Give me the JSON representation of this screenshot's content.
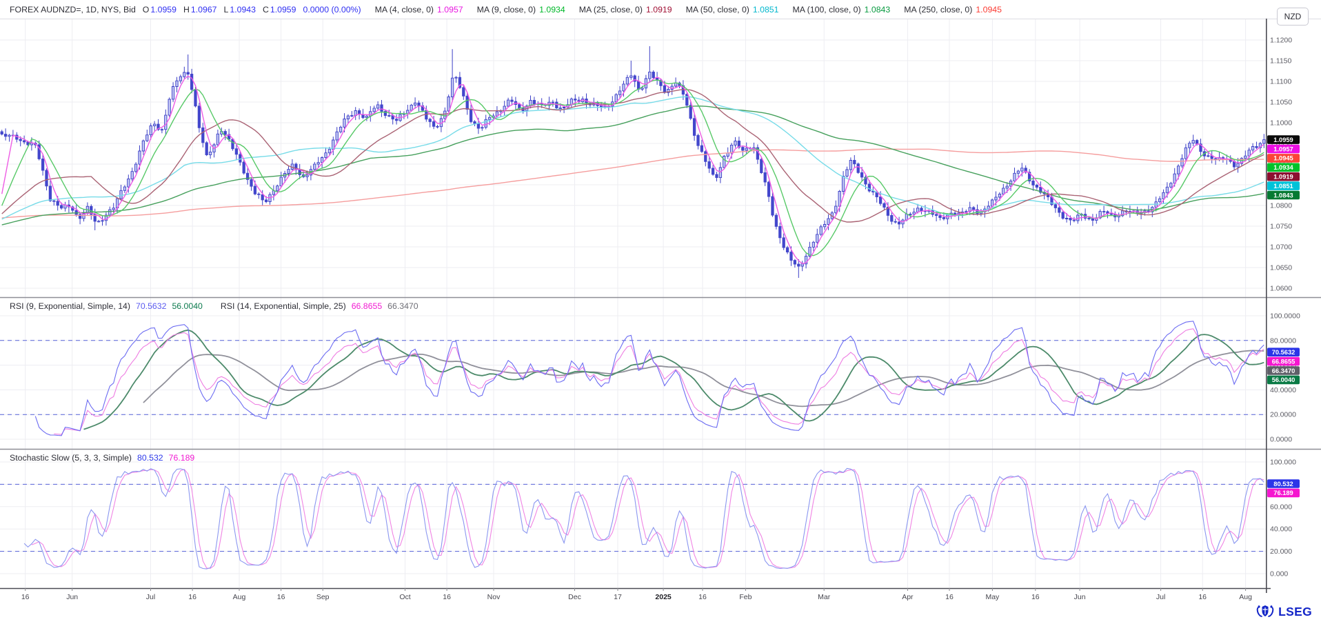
{
  "header": {
    "symbol": "FOREX AUDNZD=, 1D, NYS, Bid",
    "ohlc": [
      {
        "label": "O",
        "value": "1.0959"
      },
      {
        "label": "H",
        "value": "1.0967"
      },
      {
        "label": "L",
        "value": "1.0943"
      },
      {
        "label": "C",
        "value": "1.0959"
      },
      {
        "label": "",
        "value": "0.0000 (0.00%)"
      }
    ],
    "mas": [
      {
        "label": "MA (4, close, 0)",
        "value": "1.0957",
        "color": "#e816e0"
      },
      {
        "label": "MA (9, close, 0)",
        "value": "1.0934",
        "color": "#00b82a"
      },
      {
        "label": "MA (25, close, 0)",
        "value": "1.0919",
        "color": "#a11236"
      },
      {
        "label": "MA (50, close, 0)",
        "value": "1.0851",
        "color": "#00b7cd"
      },
      {
        "label": "MA (100, close, 0)",
        "value": "1.0843",
        "color": "#089a40"
      },
      {
        "label": "MA (250, close, 0)",
        "value": "1.0945",
        "color": "#fb3b33"
      }
    ]
  },
  "currency_button": {
    "label": "NZD"
  },
  "rsi_panel": {
    "title1": "RSI (9, Exponential, Simple, 14)",
    "value1": "70.5632",
    "value2": "56.0040",
    "title2": "RSI (14, Exponential, Simple, 25)",
    "value3": "66.8655",
    "value4": "66.3470",
    "value1_color": "#5b5bf0",
    "value2_color": "#0c7a4e",
    "value3_color": "#f21ad2",
    "value4_color": "#6e6e76"
  },
  "stoch_panel": {
    "title": "Stochastic Slow (5, 3, 3, Simple)",
    "value1": "80.532",
    "value2": "76.189",
    "value1_color": "#2f3bea",
    "value2_color": "#f21ad2"
  },
  "logo": {
    "text": "LSEG"
  },
  "colors": {
    "quote_value": "#2f2ff2",
    "candle_up_fill": "#c2c6f4",
    "candle_up_stroke": "#3c40c6",
    "candle_down": "#4347cc",
    "wick": "#3c40c6",
    "grid": "#ededf2",
    "guide": "#5560d8",
    "axis_line": "#4a4a52",
    "divider": "#8e8e96",
    "axis_text": "#5a5a62",
    "date_text": "#46464e",
    "header_text": "#2e2e36"
  },
  "axes": {
    "price_ticks": [
      "1.1200",
      "1.1150",
      "1.1100",
      "1.1050",
      "1.1000",
      "1.0950",
      "1.0900",
      "1.0850",
      "1.0800",
      "1.0750",
      "1.0700",
      "1.0650",
      "1.0600"
    ],
    "rsi_ticks": [
      "100.0000",
      "80.0000",
      "60.0000",
      "40.0000",
      "20.0000",
      "0.0000"
    ],
    "stoch_ticks": [
      "100.000",
      "80.000",
      "60.000",
      "40.000",
      "20.000",
      "0.000"
    ],
    "x_ticks": [
      {
        "f": 0.02,
        "label": "16"
      },
      {
        "f": 0.057,
        "label": "Jun"
      },
      {
        "f": 0.119,
        "label": "Jul"
      },
      {
        "f": 0.152,
        "label": "16"
      },
      {
        "f": 0.189,
        "label": "Aug"
      },
      {
        "f": 0.222,
        "label": "16"
      },
      {
        "f": 0.255,
        "label": "Sep"
      },
      {
        "f": 0.32,
        "label": "Oct"
      },
      {
        "f": 0.353,
        "label": "16"
      },
      {
        "f": 0.39,
        "label": "Nov"
      },
      {
        "f": 0.454,
        "label": "Dec"
      },
      {
        "f": 0.488,
        "label": "17"
      },
      {
        "f": 0.524,
        "label": "2025",
        "bold": true
      },
      {
        "f": 0.555,
        "label": "16"
      },
      {
        "f": 0.589,
        "label": "Feb"
      },
      {
        "f": 0.651,
        "label": "Mar"
      },
      {
        "f": 0.717,
        "label": "Apr"
      },
      {
        "f": 0.75,
        "label": "16"
      },
      {
        "f": 0.784,
        "label": "May"
      },
      {
        "f": 0.818,
        "label": "16"
      },
      {
        "f": 0.853,
        "label": "Jun"
      },
      {
        "f": 0.917,
        "label": "Jul"
      },
      {
        "f": 0.95,
        "label": "16"
      },
      {
        "f": 0.984,
        "label": "Aug"
      }
    ],
    "price_badges": [
      {
        "label": "1.0959",
        "v": 1.0959,
        "bg": "#0a0a0a",
        "fg": "#ffffff"
      },
      {
        "label": "1.0957",
        "v": 1.0957,
        "bg": "#ec0fe4",
        "fg": "#ffffff"
      },
      {
        "label": "1.0945",
        "v": 1.0945,
        "bg": "#fb4438",
        "fg": "#ffffff"
      },
      {
        "label": "1.0934",
        "v": 1.0934,
        "bg": "#00c22a",
        "fg": "#ffffff"
      },
      {
        "label": "1.0919",
        "v": 1.0919,
        "bg": "#8c1030",
        "fg": "#ffffff"
      },
      {
        "label": "1.0851",
        "v": 1.0851,
        "bg": "#00c2d8",
        "fg": "#ffffff"
      },
      {
        "label": "1.0843",
        "v": 1.0843,
        "bg": "#067a33",
        "fg": "#ffffff"
      }
    ],
    "rsi_badges": [
      {
        "label": "70.5632",
        "v": 70.5632,
        "bg": "#2b35e8",
        "fg": "#ffffff"
      },
      {
        "label": "66.8655",
        "v": 66.8655,
        "bg": "#f515cf",
        "fg": "#ffffff"
      },
      {
        "label": "66.3470",
        "v": 66.347,
        "bg": "#5f5f68",
        "fg": "#ffffff"
      },
      {
        "label": "56.0040",
        "v": 56.004,
        "bg": "#0a7a45",
        "fg": "#ffffff"
      }
    ],
    "stoch_badges": [
      {
        "label": "80.532",
        "v": 80.532,
        "bg": "#2b35e8",
        "fg": "#ffffff"
      },
      {
        "label": "76.189",
        "v": 76.189,
        "bg": "#f515cf",
        "fg": "#ffffff"
      }
    ]
  },
  "chart_data": [
    {
      "type": "candlestick",
      "symbol": "FOREX AUDNZD=",
      "interval": "1D",
      "venue": "NYS",
      "side": "Bid",
      "ohlc_current": {
        "open": 1.0959,
        "high": 1.0967,
        "low": 1.0943,
        "close": 1.0959,
        "change": "0.0000 (0.00%)"
      },
      "x_axis": {
        "start": "May 2024",
        "end": "Aug 2025"
      },
      "y_axis": {
        "min": 1.0578,
        "max": 1.1252,
        "tick_step": 0.005
      },
      "overlays": [
        {
          "name": "MA (4, close, 0)",
          "period": 4,
          "value": 1.0957,
          "line_color": "#ee5ce4",
          "line_width": 1.4
        },
        {
          "name": "MA (9, close, 0)",
          "period": 9,
          "value": 1.0934,
          "line_color": "#57c967",
          "line_width": 1.4
        },
        {
          "name": "MA (25, close, 0)",
          "period": 25,
          "value": 1.0919,
          "line_color": "#aa6374",
          "line_width": 1.4
        },
        {
          "name": "MA (50, close, 0)",
          "period": 50,
          "value": 1.0851,
          "line_color": "#76dbe8",
          "line_width": 1.4
        },
        {
          "name": "MA (100, close, 0)",
          "period": 100,
          "value": 1.0843,
          "line_color": "#46a05c",
          "line_width": 1.4
        },
        {
          "name": "MA (250, close, 0)",
          "period": 250,
          "value": 1.0945,
          "line_color": "#f59d9d",
          "line_width": 1.4
        }
      ],
      "bars": 340,
      "close_path": [
        [
          0.003,
          1.0965
        ],
        [
          0.011,
          1.097
        ],
        [
          0.019,
          1.095
        ],
        [
          0.027,
          1.094
        ],
        [
          0.033,
          1.088
        ],
        [
          0.038,
          1.082
        ],
        [
          0.046,
          1.079
        ],
        [
          0.055,
          1.08
        ],
        [
          0.061,
          1.077
        ],
        [
          0.068,
          1.079
        ],
        [
          0.075,
          1.0755
        ],
        [
          0.082,
          1.078
        ],
        [
          0.089,
          1.0795
        ],
        [
          0.096,
          1.084
        ],
        [
          0.104,
          1.089
        ],
        [
          0.112,
          1.095
        ],
        [
          0.12,
          1.1
        ],
        [
          0.127,
          1.0985
        ],
        [
          0.133,
          1.106
        ],
        [
          0.138,
          1.1095
        ],
        [
          0.143,
          1.112
        ],
        [
          0.148,
          1.1125
        ],
        [
          0.152,
          1.106
        ],
        [
          0.157,
          1.0975
        ],
        [
          0.162,
          1.0915
        ],
        [
          0.168,
          1.095
        ],
        [
          0.173,
          1.099
        ],
        [
          0.179,
          1.0958
        ],
        [
          0.184,
          1.093
        ],
        [
          0.19,
          1.09
        ],
        [
          0.195,
          1.0862
        ],
        [
          0.201,
          1.0825
        ],
        [
          0.208,
          1.0806
        ],
        [
          0.215,
          1.084
        ],
        [
          0.223,
          1.087
        ],
        [
          0.231,
          1.0898
        ],
        [
          0.239,
          1.087
        ],
        [
          0.248,
          1.0892
        ],
        [
          0.256,
          1.0925
        ],
        [
          0.264,
          1.0968
        ],
        [
          0.272,
          1.1005
        ],
        [
          0.28,
          1.1032
        ],
        [
          0.289,
          1.101
        ],
        [
          0.297,
          1.1042
        ],
        [
          0.305,
          1.1022
        ],
        [
          0.313,
          1.1002
        ],
        [
          0.321,
          1.103
        ],
        [
          0.328,
          1.1058
        ],
        [
          0.336,
          1.1008
        ],
        [
          0.343,
          1.0985
        ],
        [
          0.351,
          1.103
        ],
        [
          0.358,
          1.1115
        ],
        [
          0.364,
          1.1078
        ],
        [
          0.372,
          1.1008
        ],
        [
          0.379,
          1.098
        ],
        [
          0.387,
          1.1015
        ],
        [
          0.395,
          1.1035
        ],
        [
          0.403,
          1.1052
        ],
        [
          0.411,
          1.103
        ],
        [
          0.419,
          1.1055
        ],
        [
          0.427,
          1.1035
        ],
        [
          0.436,
          1.1055
        ],
        [
          0.444,
          1.103
        ],
        [
          0.452,
          1.1052
        ],
        [
          0.46,
          1.106
        ],
        [
          0.468,
          1.104
        ],
        [
          0.477,
          1.1035
        ],
        [
          0.485,
          1.106
        ],
        [
          0.493,
          1.109
        ],
        [
          0.499,
          1.1118
        ],
        [
          0.505,
          1.108
        ],
        [
          0.513,
          1.1118
        ],
        [
          0.519,
          1.1098
        ],
        [
          0.526,
          1.1078
        ],
        [
          0.534,
          1.1098
        ],
        [
          0.542,
          1.1052
        ],
        [
          0.549,
          1.0972
        ],
        [
          0.557,
          1.0908
        ],
        [
          0.565,
          1.0858
        ],
        [
          0.572,
          1.092
        ],
        [
          0.58,
          1.0952
        ],
        [
          0.587,
          1.093
        ],
        [
          0.595,
          1.0952
        ],
        [
          0.601,
          1.0888
        ],
        [
          0.607,
          1.0825
        ],
        [
          0.612,
          1.0762
        ],
        [
          0.619,
          1.0708
        ],
        [
          0.625,
          1.0665
        ],
        [
          0.632,
          1.0645
        ],
        [
          0.638,
          1.069
        ],
        [
          0.645,
          1.0725
        ],
        [
          0.651,
          1.0748
        ],
        [
          0.659,
          1.0788
        ],
        [
          0.667,
          1.0872
        ],
        [
          0.673,
          1.0905
        ],
        [
          0.68,
          1.0878
        ],
        [
          0.687,
          1.0842
        ],
        [
          0.695,
          1.0808
        ],
        [
          0.703,
          1.0775
        ],
        [
          0.71,
          1.0755
        ],
        [
          0.719,
          1.0775
        ],
        [
          0.727,
          1.0798
        ],
        [
          0.735,
          1.0782
        ],
        [
          0.743,
          1.0765
        ],
        [
          0.751,
          1.0785
        ],
        [
          0.76,
          1.0775
        ],
        [
          0.768,
          1.0795
        ],
        [
          0.776,
          1.0785
        ],
        [
          0.784,
          1.0802
        ],
        [
          0.792,
          1.0838
        ],
        [
          0.801,
          1.0868
        ],
        [
          0.808,
          1.0888
        ],
        [
          0.815,
          1.0862
        ],
        [
          0.823,
          1.0835
        ],
        [
          0.831,
          1.0805
        ],
        [
          0.839,
          1.0782
        ],
        [
          0.848,
          1.0758
        ],
        [
          0.856,
          1.0778
        ],
        [
          0.864,
          1.0768
        ],
        [
          0.872,
          1.0782
        ],
        [
          0.88,
          1.0775
        ],
        [
          0.889,
          1.0788
        ],
        [
          0.897,
          1.0778
        ],
        [
          0.905,
          1.0788
        ],
        [
          0.913,
          1.0798
        ],
        [
          0.921,
          1.0828
        ],
        [
          0.929,
          1.0878
        ],
        [
          0.937,
          1.0928
        ],
        [
          0.944,
          1.0958
        ],
        [
          0.95,
          1.0935
        ],
        [
          0.957,
          1.0915
        ],
        [
          0.963,
          1.0905
        ],
        [
          0.97,
          1.0918
        ],
        [
          0.977,
          1.0898
        ],
        [
          0.983,
          1.0908
        ],
        [
          0.99,
          1.0938
        ],
        [
          0.996,
          1.0952
        ],
        [
          1.0,
          1.0959
        ]
      ],
      "spike_highs": [
        [
          0.148,
          1.1165
        ],
        [
          0.358,
          1.1178
        ],
        [
          0.499,
          1.115
        ],
        [
          0.513,
          1.1185
        ]
      ],
      "spike_lows": [
        [
          0.075,
          1.074
        ],
        [
          0.632,
          1.0625
        ]
      ]
    },
    {
      "type": "line",
      "name": "RSI",
      "range": [
        0,
        100
      ],
      "guides": [
        80,
        20
      ],
      "series": [
        {
          "name": "RSI (9, Exponential)",
          "current": 70.5632,
          "line_color": "#6b6bf2",
          "line_width": 1.1
        },
        {
          "name": "SMA 14 of RSI (9)",
          "current": 56.004,
          "line_color": "#4c8a6a",
          "line_width": 1.8
        },
        {
          "name": "RSI (14, Exponential)",
          "current": 66.8655,
          "line_color": "#ee7ce2",
          "line_width": 1.1
        },
        {
          "name": "SMA 25 of RSI (14)",
          "current": 66.347,
          "line_color": "#90909a",
          "line_width": 1.8
        }
      ]
    },
    {
      "type": "line",
      "name": "Stochastic Slow (5, 3, 3, Simple)",
      "range": [
        0,
        100
      ],
      "guides": [
        80,
        20
      ],
      "series": [
        {
          "name": "%K",
          "current": 80.532,
          "line_color": "#8a96f0",
          "line_width": 1.1
        },
        {
          "name": "%D",
          "current": 76.189,
          "line_color": "#f084e4",
          "line_width": 1.1
        }
      ]
    }
  ]
}
